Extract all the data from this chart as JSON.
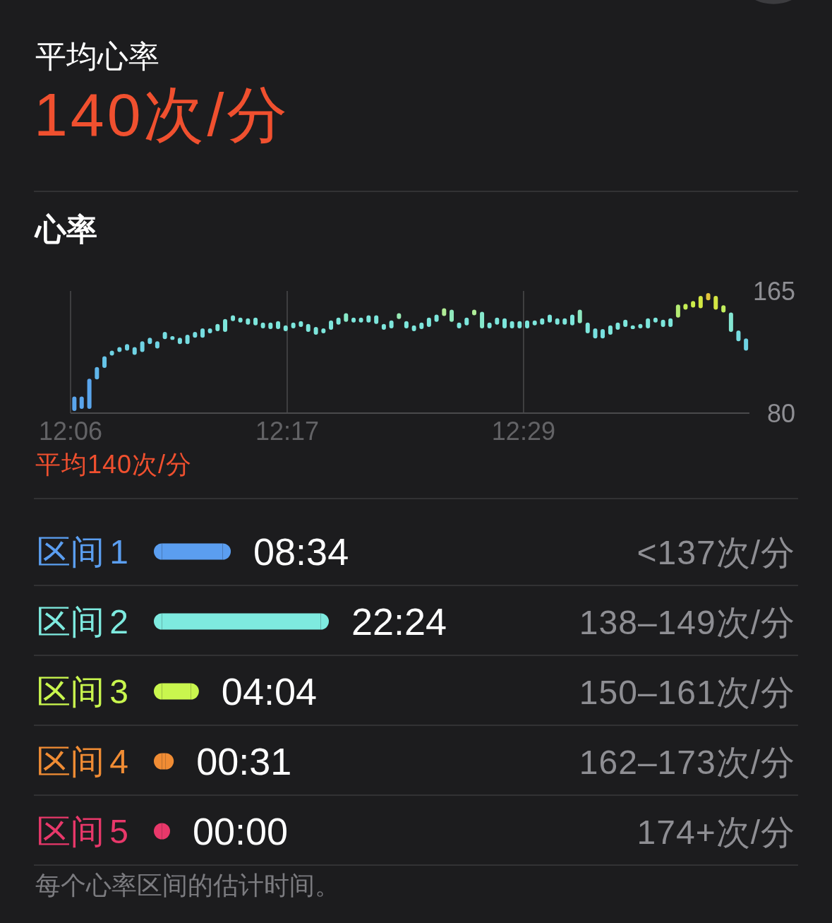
{
  "chart_data": [
    {
      "type": "other",
      "title": "平均心率",
      "annotations": [
        "140次/分"
      ]
    },
    {
      "type": "bar",
      "title": "心率",
      "x": [
        12.1032,
        12.1094,
        12.1159,
        12.1223,
        12.1287,
        12.135,
        12.1414,
        12.1478,
        12.1542,
        12.1607,
        12.1671,
        12.1734,
        12.1798,
        12.1862,
        12.1925,
        12.1989,
        12.2053,
        12.2117,
        12.218,
        12.2244,
        12.2308,
        12.2374,
        12.2437,
        12.2501,
        12.2565,
        12.2628,
        12.2692,
        12.2756,
        12.282,
        12.2885,
        12.2949,
        12.3011,
        12.3076,
        12.314,
        12.3204,
        12.3267,
        12.3331,
        12.3395,
        12.3458,
        12.3522,
        12.3587,
        12.3651,
        12.3715,
        12.3779,
        12.3842,
        12.3906,
        12.397,
        12.4033,
        12.4097,
        12.4161,
        12.4225,
        12.4288,
        12.4352,
        12.4416,
        12.4482,
        12.4545,
        12.4609,
        12.4673,
        12.4736,
        12.48,
        12.4864,
        12.4928,
        12.4991,
        12.5055,
        12.5119,
        12.5182,
        12.5246,
        12.531,
        12.5376,
        12.544,
        12.5503,
        12.5568,
        12.5631,
        12.5695,
        12.5758,
        12.5822,
        12.5886,
        12.595,
        12.6014,
        12.6077,
        12.6141,
        12.6204,
        12.6268,
        12.6332,
        12.6396,
        12.646,
        12.6525,
        12.6589,
        12.6652,
        12.6716
      ],
      "base": [
        81.5,
        83,
        83,
        103.5,
        111.5,
        120,
        122.5,
        123.5,
        120.5,
        122.5,
        128,
        125,
        131.5,
        131,
        128,
        128,
        132.5,
        132.5,
        135.5,
        137,
        136.5,
        144,
        143,
        141.5,
        141,
        139,
        138.5,
        138.5,
        137,
        139,
        140,
        136.5,
        134.5,
        135.5,
        138,
        141.5,
        143.5,
        143,
        143,
        143,
        142,
        138,
        139,
        145.5,
        139,
        137,
        138.5,
        140,
        143.5,
        147.5,
        143.5,
        139,
        141,
        148,
        139,
        139,
        141.5,
        139,
        139,
        139,
        139,
        141,
        141.5,
        143,
        141.5,
        141.5,
        141,
        142.5,
        135.5,
        132,
        132,
        134.5,
        138,
        140,
        138.5,
        139,
        139,
        143,
        140,
        140,
        146.5,
        152,
        153.5,
        153,
        158.5,
        152,
        150,
        136.5,
        130,
        123.5
      ],
      "values": [
        10,
        8.5,
        21,
        8.5,
        8,
        3.5,
        3.5,
        4.5,
        5.5,
        7.5,
        4.5,
        5,
        5,
        2.5,
        4.5,
        6.5,
        4,
        6.5,
        3.5,
        5,
        9,
        4,
        3.5,
        4.5,
        5.5,
        4,
        4.5,
        5.5,
        4,
        4,
        4,
        5.5,
        5.5,
        3.5,
        6.5,
        5,
        6,
        3.5,
        3.5,
        5,
        6,
        4,
        5.5,
        4,
        5,
        4,
        4.5,
        6.5,
        5,
        5.5,
        8.5,
        4,
        5.5,
        4,
        11.5,
        4,
        5,
        7,
        5,
        5,
        5.5,
        3.5,
        4.5,
        5.5,
        4.5,
        4.5,
        7.5,
        9.5,
        7.5,
        7,
        6.5,
        6.5,
        5,
        5,
        2.5,
        3,
        7,
        3.5,
        5,
        6,
        9,
        4,
        4.5,
        8.5,
        5,
        9.5,
        5,
        13.5,
        7.5,
        8.5
      ],
      "colors": [
        "#5aa5ec",
        "#5aa5ec",
        "#5aa5ec",
        "#60b6ea",
        "#66c4e8",
        "#6fd3e4",
        "#6fd3e4",
        "#6fd3e4",
        "#6fd3e4",
        "#6fd3e4",
        "#6fd3e4",
        "#6fd3e4",
        "#76dde1",
        "#76dde1",
        "#76dde1",
        "#76dde1",
        "#76dde1",
        "#76dde1",
        "#76dde1",
        "#7de6dc",
        "#7de6dc",
        "#7de6dc",
        "#7de6dc",
        "#7de6dc",
        "#7de6dc",
        "#7de6dc",
        "#7de6dc",
        "#7de6dc",
        "#7de6dc",
        "#7de6dc",
        "#7de6dc",
        "#7de6dc",
        "#7de6dc",
        "#7de6dc",
        "#7de6dc",
        "#7de6dc",
        "#88e9c8",
        "#7de6dc",
        "#7de6dc",
        "#7de6dc",
        "#7de6dc",
        "#7de6dc",
        "#7de6dc",
        "#98eab4",
        "#7de6dc",
        "#7de6dc",
        "#7de6dc",
        "#7de6dc",
        "#7de6dc",
        "#b0ec96",
        "#90e9bc",
        "#7de6dc",
        "#7de6dc",
        "#aeec98",
        "#86e8cc",
        "#7de6dc",
        "#7de6dc",
        "#7de6dc",
        "#7de6dc",
        "#7de6dc",
        "#7de6dc",
        "#7de6dc",
        "#7de6dc",
        "#7de6dc",
        "#7de6dc",
        "#7de6dc",
        "#7de6dc",
        "#8ee8c0",
        "#7de6dc",
        "#78e0e0",
        "#78e0e0",
        "#7de6dc",
        "#7de6dc",
        "#7de6dc",
        "#7de6dc",
        "#7de6dc",
        "#7de6dc",
        "#7de6dc",
        "#7de6dc",
        "#7de6dc",
        "#b4ec74",
        "#c6ee54",
        "#cdee4a",
        "#d2e842",
        "#e2c43c",
        "#d4e644",
        "#c2ee5e",
        "#84e6d2",
        "#76dde1",
        "#6fd3e4"
      ],
      "xlim": [
        12.1,
        12.6745
      ],
      "xticks": [
        {
          "value": 12.1,
          "label": "12:06"
        },
        {
          "value": 12.283333,
          "label": "12:17"
        },
        {
          "value": 12.483333,
          "label": "12:29"
        }
      ],
      "ylim": [
        80,
        165
      ],
      "yticks": [
        80,
        165
      ],
      "grid": "x",
      "annotations": [
        "平均140次/分"
      ]
    },
    {
      "type": "bar",
      "orientation": "horizontal",
      "categories": [
        "区间 1",
        "区间 2",
        "区间 3",
        "区间 4",
        "区间 5"
      ],
      "values": [
        8.567,
        22.4,
        4.067,
        0.517,
        0
      ],
      "value_labels": [
        "08:34",
        "22:24",
        "04:04",
        "00:31",
        "00:00"
      ],
      "colors": [
        "#5b9ef0",
        "#7eeadf",
        "#c9f64e",
        "#f08c34",
        "#e8386a"
      ],
      "annotations": [
        "<137次/分",
        "138–149次/分",
        "150–161次/分",
        "162–173次/分",
        "174+次/分",
        "每个心率区间的估计时间。"
      ]
    }
  ]
}
